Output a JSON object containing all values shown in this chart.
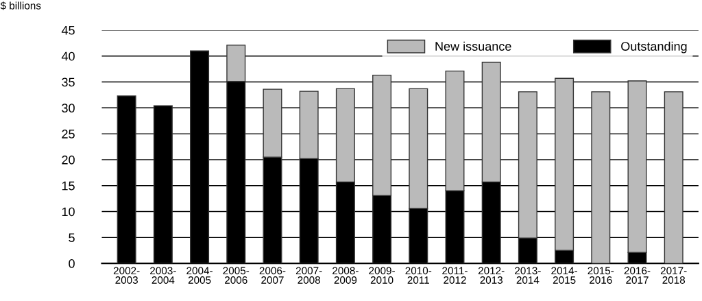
{
  "chart_data": {
    "type": "bar",
    "stacked": true,
    "ylabel": "$ billions",
    "categories": [
      "2002-\n2003",
      "2003-\n2004",
      "2004-\n2005",
      "2005-\n2006",
      "2006-\n2007",
      "2007-\n2008",
      "2008-\n2009",
      "2009-\n2010",
      "2010-\n2011",
      "2011-\n2012",
      "2012-\n2013",
      "2013-\n2014",
      "2014-\n2015",
      "2015-\n2016",
      "2016-\n2017",
      "2017-\n2018"
    ],
    "series": [
      {
        "name": "Outstanding",
        "color": "#000000",
        "values": [
          32.3,
          30.4,
          41.0,
          35.1,
          20.5,
          20.2,
          15.7,
          13.1,
          10.6,
          14.0,
          15.7,
          4.9,
          2.5,
          0,
          2.1,
          0
        ]
      },
      {
        "name": "New issuance",
        "color": "#bababa",
        "values": [
          null,
          null,
          null,
          7.0,
          13.1,
          13.0,
          18.0,
          23.2,
          23.1,
          23.1,
          23.1,
          28.2,
          33.2,
          33.1,
          33.1,
          33.1
        ]
      }
    ],
    "ylim": [
      0,
      45
    ],
    "yticks": [
      0,
      5,
      10,
      15,
      20,
      25,
      30,
      35,
      40,
      45
    ],
    "grid": "y",
    "legend": "top right"
  }
}
